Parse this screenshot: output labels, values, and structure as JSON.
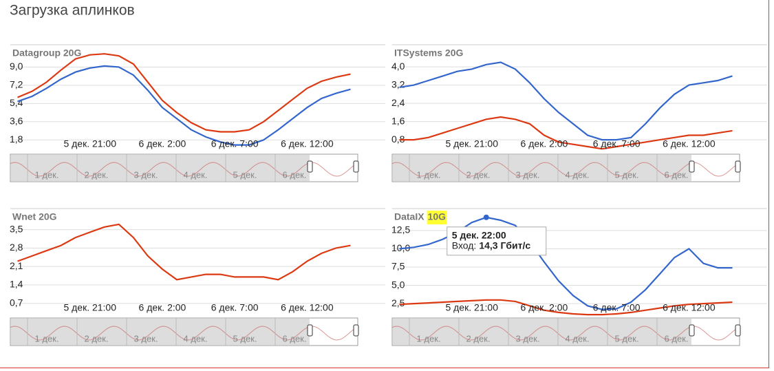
{
  "title": "Загрузка аплинков",
  "chart_data": [
    {
      "type": "line",
      "title": "Datagroup 20G",
      "x": [
        "5 дек. 16:00",
        "5 дек. 17:00",
        "5 дек. 18:00",
        "5 дек. 19:00",
        "5 дек. 20:00",
        "5 дек. 21:00",
        "5 дек. 22:00",
        "5 дек. 23:00",
        "6 дек. 0:00",
        "6 дек. 1:00",
        "6 дек. 2:00",
        "6 дек. 3:00",
        "6 дек. 4:00",
        "6 дек. 5:00",
        "6 дек. 6:00",
        "6 дек. 7:00",
        "6 дек. 8:00",
        "6 дек. 9:00",
        "6 дек. 10:00",
        "6 дек. 11:00",
        "6 дек. 12:00",
        "6 дек. 13:00",
        "6 дек. 14:00",
        "6 дек. 15:00"
      ],
      "xticks": [
        "5 дек. 21:00",
        "6 дек. 2:00",
        "6 дек. 7:00",
        "6 дек. 12:00"
      ],
      "ylim": [
        0.8,
        11.2
      ],
      "yticks": [
        {
          "value": 1.8,
          "label": "1,8"
        },
        {
          "value": 3.6,
          "label": "3,6"
        },
        {
          "value": 5.4,
          "label": "5,4"
        },
        {
          "value": 7.2,
          "label": "7,2"
        },
        {
          "value": 9.0,
          "label": "9,0"
        }
      ],
      "series": [
        {
          "color": "#3366cc",
          "values": [
            5.6,
            6.1,
            6.9,
            7.8,
            8.5,
            8.9,
            9.1,
            9.0,
            8.2,
            6.7,
            5.0,
            3.9,
            2.8,
            2.1,
            1.6,
            1.3,
            1.3,
            1.8,
            2.8,
            3.9,
            5.0,
            5.9,
            6.4,
            6.8
          ]
        },
        {
          "color": "#dc3912",
          "values": [
            6.0,
            6.6,
            7.5,
            8.7,
            9.8,
            10.2,
            10.3,
            10.1,
            9.3,
            7.5,
            5.7,
            4.5,
            3.5,
            2.8,
            2.6,
            2.6,
            2.8,
            3.6,
            4.7,
            5.8,
            6.9,
            7.6,
            8.0,
            8.3
          ]
        }
      ],
      "navigator_labels": [
        "1 дек.",
        "2 дек.",
        "3 дек.",
        "4 дек.",
        "5 дек.",
        "6 дек."
      ]
    },
    {
      "type": "line",
      "title": "ITSystems 20G",
      "x": [
        "5 дек. 16:00",
        "5 дек. 17:00",
        "5 дек. 18:00",
        "5 дек. 19:00",
        "5 дек. 20:00",
        "5 дек. 21:00",
        "5 дек. 22:00",
        "5 дек. 23:00",
        "6 дек. 0:00",
        "6 дек. 1:00",
        "6 дек. 2:00",
        "6 дек. 3:00",
        "6 дек. 4:00",
        "6 дек. 5:00",
        "6 дек. 6:00",
        "6 дек. 7:00",
        "6 дек. 8:00",
        "6 дек. 9:00",
        "6 дек. 10:00",
        "6 дек. 11:00",
        "6 дек. 12:00",
        "6 дек. 13:00",
        "6 дек. 14:00",
        "6 дек. 15:00"
      ],
      "xticks": [
        "5 дек. 21:00",
        "6 дек. 2:00",
        "6 дек. 7:00",
        "6 дек. 12:00"
      ],
      "ylim": [
        0.35,
        4.97
      ],
      "yticks": [
        {
          "value": 0.8,
          "label": "0,8"
        },
        {
          "value": 1.6,
          "label": "1,6"
        },
        {
          "value": 2.4,
          "label": "2,4"
        },
        {
          "value": 3.2,
          "label": "3,2"
        },
        {
          "value": 4.0,
          "label": "4,0"
        }
      ],
      "series": [
        {
          "color": "#3366cc",
          "values": [
            3.1,
            3.2,
            3.4,
            3.6,
            3.8,
            3.9,
            4.1,
            4.2,
            3.9,
            3.3,
            2.6,
            2.0,
            1.5,
            1.0,
            0.8,
            0.8,
            0.9,
            1.5,
            2.2,
            2.8,
            3.2,
            3.3,
            3.4,
            3.6
          ]
        },
        {
          "color": "#dc3912",
          "values": [
            0.8,
            0.8,
            0.9,
            1.1,
            1.3,
            1.5,
            1.7,
            1.8,
            1.7,
            1.5,
            1.0,
            0.7,
            0.6,
            0.5,
            0.4,
            0.5,
            0.6,
            0.7,
            0.8,
            0.9,
            1.0,
            1.0,
            1.1,
            1.2
          ]
        }
      ],
      "navigator_labels": [
        "1 дек.",
        "2 дек.",
        "3 дек.",
        "4 дек.",
        "5 дек.",
        "6 дек."
      ]
    },
    {
      "type": "line",
      "title": "Wnet 20G",
      "x": [
        "5 дек. 16:00",
        "5 дек. 17:00",
        "5 дек. 18:00",
        "5 дек. 19:00",
        "5 дек. 20:00",
        "5 дек. 21:00",
        "5 дек. 22:00",
        "5 дек. 23:00",
        "6 дек. 0:00",
        "6 дек. 1:00",
        "6 дек. 2:00",
        "6 дек. 3:00",
        "6 дек. 4:00",
        "6 дек. 5:00",
        "6 дек. 6:00",
        "6 дек. 7:00",
        "6 дек. 8:00",
        "6 дек. 9:00",
        "6 дек. 10:00",
        "6 дек. 11:00",
        "6 дек. 12:00",
        "6 дек. 13:00",
        "6 дек. 14:00",
        "6 дек. 15:00"
      ],
      "xticks": [
        "5 дек. 21:00",
        "6 дек. 2:00",
        "6 дек. 7:00",
        "6 дек. 12:00"
      ],
      "ylim": [
        0.3,
        4.3
      ],
      "yticks": [
        {
          "value": 0.7,
          "label": "0,7"
        },
        {
          "value": 1.4,
          "label": "1,4"
        },
        {
          "value": 2.1,
          "label": "2,1"
        },
        {
          "value": 2.8,
          "label": "2,8"
        },
        {
          "value": 3.5,
          "label": "3,5"
        }
      ],
      "series": [
        {
          "color": "#dc3912",
          "values": [
            2.3,
            2.5,
            2.7,
            2.9,
            3.2,
            3.4,
            3.6,
            3.7,
            3.2,
            2.5,
            2.0,
            1.6,
            1.7,
            1.8,
            1.8,
            1.7,
            1.7,
            1.7,
            1.6,
            1.9,
            2.3,
            2.6,
            2.8,
            2.9
          ]
        }
      ],
      "navigator_labels": [
        "1 дек.",
        "2 дек.",
        "3 дек.",
        "4 дек.",
        "5 дек.",
        "6 дек."
      ]
    },
    {
      "type": "line",
      "title": "DataIX",
      "title_highlight": "10G",
      "x": [
        "5 дек. 16:00",
        "5 дек. 17:00",
        "5 дек. 18:00",
        "5 дек. 19:00",
        "5 дек. 20:00",
        "5 дек. 21:00",
        "5 дек. 22:00",
        "5 дек. 23:00",
        "6 дек. 0:00",
        "6 дек. 1:00",
        "6 дек. 2:00",
        "6 дек. 3:00",
        "6 дек. 4:00",
        "6 дек. 5:00",
        "6 дек. 6:00",
        "6 дек. 7:00",
        "6 дек. 8:00",
        "6 дек. 9:00",
        "6 дек. 10:00",
        "6 дек. 11:00",
        "6 дек. 12:00",
        "6 дек. 13:00",
        "6 дек. 14:00",
        "6 дек. 15:00"
      ],
      "xticks": [
        "5 дек. 21:00",
        "6 дек. 2:00",
        "6 дек. 7:00",
        "6 дек. 12:00"
      ],
      "ylim": [
        1.1,
        15.5
      ],
      "yticks": [
        {
          "value": 2.5,
          "label": "2,5"
        },
        {
          "value": 5.0,
          "label": "5,0"
        },
        {
          "value": 7.5,
          "label": "7,5"
        },
        {
          "value": 10.0,
          "label": "10,0"
        },
        {
          "value": 12.5,
          "label": "12,5"
        }
      ],
      "series": [
        {
          "color": "#3366cc",
          "values": [
            10.0,
            10.2,
            10.6,
            11.3,
            12.3,
            13.6,
            14.3,
            13.9,
            13.2,
            11.0,
            8.2,
            5.6,
            3.6,
            2.2,
            1.7,
            1.8,
            2.7,
            4.4,
            6.6,
            8.8,
            10.0,
            8.0,
            7.4,
            7.4
          ]
        },
        {
          "color": "#dc3912",
          "values": [
            2.4,
            2.5,
            2.6,
            2.7,
            2.8,
            2.9,
            3.0,
            3.0,
            2.8,
            2.2,
            1.6,
            1.3,
            1.1,
            1.0,
            1.0,
            1.1,
            1.3,
            1.6,
            1.9,
            2.2,
            2.4,
            2.5,
            2.6,
            2.7
          ]
        }
      ],
      "tooltip": {
        "x_label": "5 дек. 22:00",
        "label": "Вход:",
        "value_label": "14,3 Гбит/с"
      },
      "navigator_labels": [
        "1 дек.",
        "2 дек.",
        "3 дек.",
        "4 дек.",
        "5 дек.",
        "6 дек."
      ]
    }
  ]
}
